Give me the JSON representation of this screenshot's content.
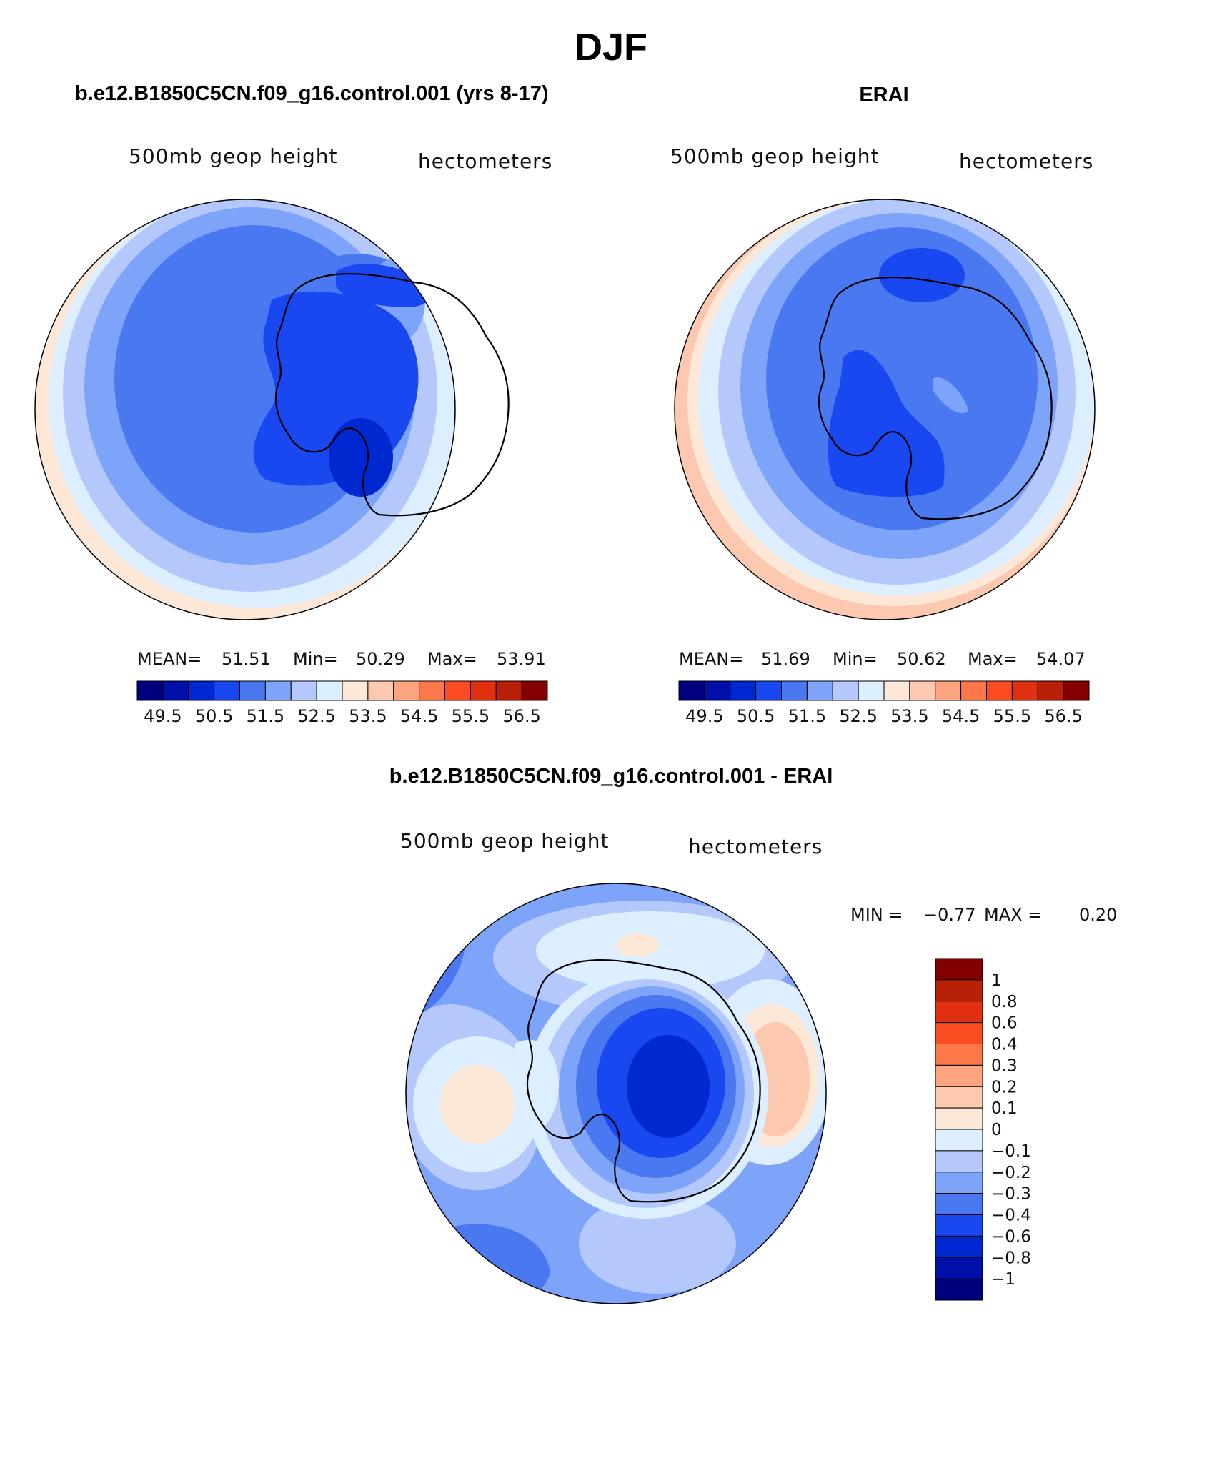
{
  "title": "DJF",
  "panels": [
    {
      "id": "model",
      "heading": "b.e12.B1850C5CN.f09_g16.control.001 (yrs 8-17)",
      "variable": "500mb geop height",
      "units": "hectometers",
      "stats": {
        "mean_label": "MEAN=",
        "mean": "51.51",
        "min_label": "Min=",
        "min": "50.29",
        "max_label": "Max=",
        "max": "53.91"
      }
    },
    {
      "id": "obs",
      "heading": "ERAI",
      "variable": "500mb geop height",
      "units": "hectometers",
      "stats": {
        "mean_label": "MEAN=",
        "mean": "51.69",
        "min_label": "Min=",
        "min": "50.62",
        "max_label": "Max=",
        "max": "54.07"
      }
    },
    {
      "id": "diff",
      "heading": "b.e12.B1850C5CN.f09_g16.control.001 - ERAI",
      "variable": "500mb geop height",
      "units": "hectometers",
      "stats": {
        "min_label": "MIN =",
        "min": "−0.77",
        "max_label": "MAX =",
        "max": "0.20"
      }
    }
  ],
  "colorbar_main": {
    "colors": [
      "#00007f",
      "#0010a8",
      "#0028d0",
      "#1a48f0",
      "#4a78f0",
      "#7ea4fa",
      "#b4c8fc",
      "#ddeefe",
      "#fde8d8",
      "#fdc8b0",
      "#fca480",
      "#fc7848",
      "#fa4c20",
      "#e03010",
      "#b82008",
      "#840000"
    ],
    "labels": [
      "49.5",
      "50.5",
      "51.5",
      "52.5",
      "53.5",
      "54.5",
      "55.5",
      "56.5"
    ]
  },
  "colorbar_diff": {
    "colors_top_to_bottom": [
      "#840000",
      "#b82008",
      "#e03010",
      "#fa4c20",
      "#fc7848",
      "#fca480",
      "#fdc8b0",
      "#fde8d8",
      "#ddeefe",
      "#b4c8fc",
      "#7ea4fa",
      "#4a78f0",
      "#1a48f0",
      "#0028d0",
      "#0010a8",
      "#00007f"
    ],
    "labels_top_to_bottom": [
      "1",
      "0.8",
      "0.6",
      "0.4",
      "0.3",
      "0.2",
      "0.1",
      "0",
      "−0.1",
      "−0.2",
      "−0.3",
      "−0.4",
      "−0.6",
      "−0.8",
      "−1"
    ]
  },
  "map_colors": {
    "ocean_outer": "#fde8d8",
    "level1": "#ddeefe",
    "level2": "#b4c8fc",
    "level3": "#7ea4fa",
    "level4": "#4a78f0",
    "level5": "#1a48f0",
    "level6": "#0028d0",
    "warm1": "#fdc8b0",
    "coast": "#000000"
  }
}
